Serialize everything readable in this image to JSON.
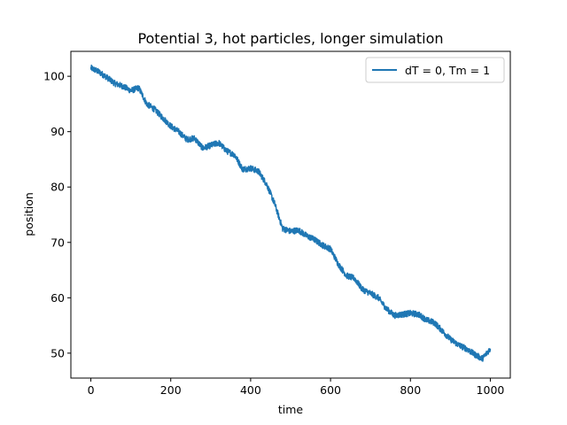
{
  "chart_data": {
    "type": "line",
    "title": "Potential 3, hot particles, longer simulation",
    "xlabel": "time",
    "ylabel": "position",
    "xlim": [
      -50,
      1050
    ],
    "ylim": [
      45.5,
      104.5
    ],
    "xticks": [
      0,
      200,
      400,
      600,
      800,
      1000
    ],
    "yticks": [
      50,
      60,
      70,
      80,
      90,
      100
    ],
    "grid": false,
    "legend_position": "top-right",
    "series": [
      {
        "name": "dT = 0, Tm = 1",
        "color": "#1f77b4",
        "x": [
          0,
          20,
          40,
          60,
          80,
          100,
          120,
          140,
          160,
          180,
          200,
          220,
          240,
          260,
          280,
          300,
          320,
          340,
          360,
          380,
          400,
          420,
          440,
          460,
          480,
          500,
          520,
          540,
          560,
          580,
          600,
          620,
          640,
          660,
          680,
          700,
          720,
          740,
          760,
          780,
          800,
          820,
          840,
          860,
          880,
          900,
          920,
          940,
          960,
          980,
          1000
        ],
        "y": [
          101.5,
          100.8,
          99.8,
          98.7,
          98.2,
          97.4,
          97.9,
          95.0,
          94.0,
          92.5,
          91.0,
          90.0,
          88.6,
          88.8,
          87.0,
          87.5,
          88.0,
          86.5,
          85.8,
          83.2,
          83.4,
          82.8,
          80.5,
          77.0,
          72.5,
          72.0,
          72.2,
          71.2,
          70.5,
          69.5,
          68.8,
          66.0,
          64.0,
          63.5,
          61.5,
          60.8,
          60.0,
          58.0,
          56.8,
          57.0,
          57.2,
          57.0,
          56.0,
          55.5,
          54.0,
          52.5,
          51.5,
          50.8,
          49.8,
          49.0,
          50.8
        ]
      }
    ]
  }
}
